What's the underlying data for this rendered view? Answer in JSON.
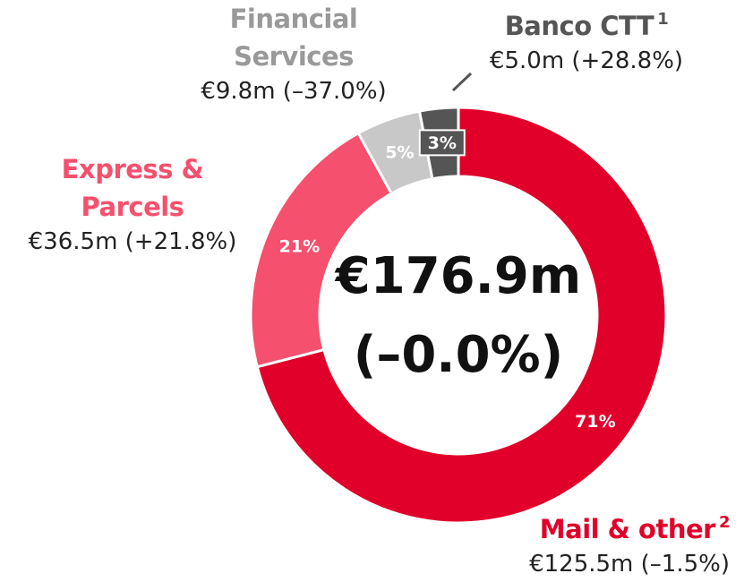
{
  "chart_data": {
    "type": "pie",
    "categories": [
      "Mail & other",
      "Express & Parcels",
      "Financial Services",
      "Banco CTT"
    ],
    "category_notes": [
      "2",
      null,
      null,
      "1"
    ],
    "values": [
      71,
      21,
      5,
      3
    ],
    "value_labels": [
      "71%",
      "21%",
      "5%",
      "3%"
    ],
    "amounts": [
      "€125.5m (–1.5%)",
      "€36.5m (+21.8%)",
      "€9.8m (–37.0%)",
      "€5.0m (+28.8%)"
    ],
    "colors": [
      "#e0002a",
      "#f5506e",
      "#c8c8c8",
      "#555555"
    ],
    "center_title": "€176.9m",
    "center_subtitle": "(–0.0%)",
    "donut": true
  }
}
